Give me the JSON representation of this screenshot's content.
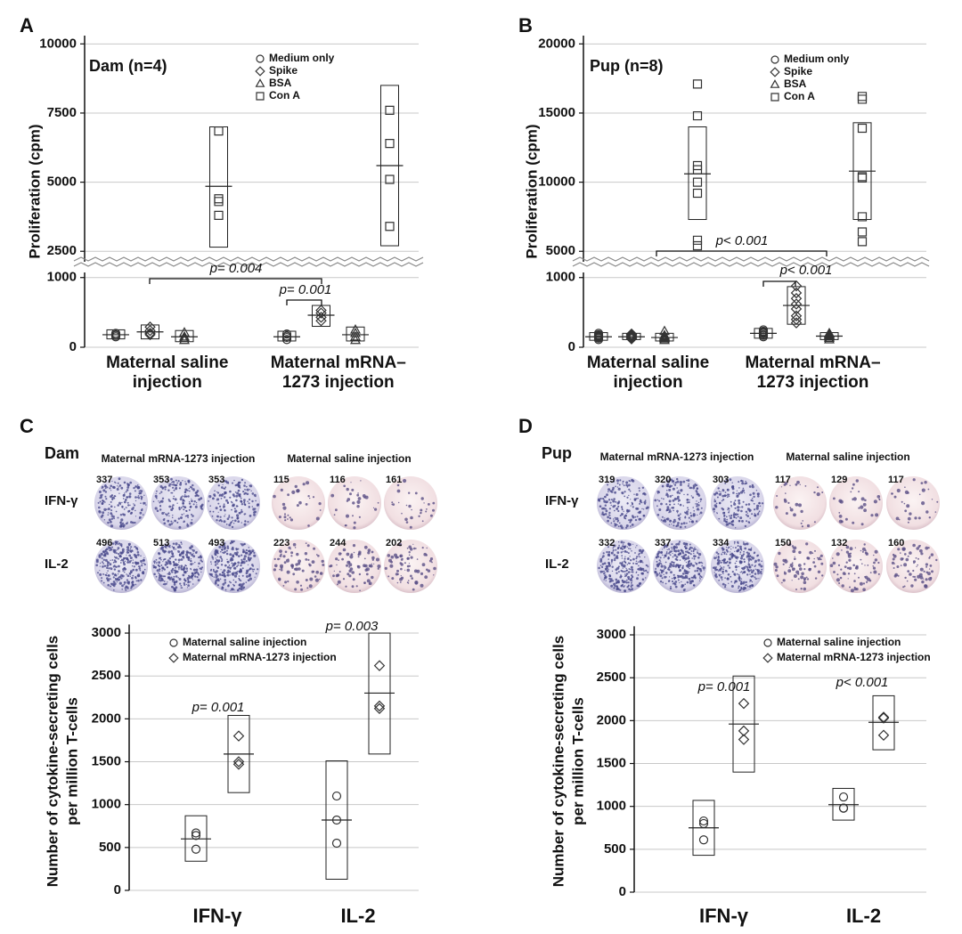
{
  "chart_data": [
    {
      "type": "dot",
      "panel": "A",
      "title": "Dam (n=4)",
      "ylabel": [
        "Proliferation (cpm)"
      ],
      "categories": [
        [
          "Maternal saline",
          "injection"
        ],
        [
          "Maternal mRNA–",
          "1273 injection"
        ]
      ],
      "series": [
        {
          "name": "Medium only",
          "marker": "circle",
          "values": [
            [
              150,
              170,
              180,
              200
            ],
            [
              110,
              140,
              160,
              190
            ]
          ],
          "means": [
            180,
            150
          ],
          "ranges": [
            [
              120,
              250
            ],
            [
              90,
              230
            ]
          ]
        },
        {
          "name": "Spike",
          "marker": "diamond",
          "values": [
            [
              180,
              200,
              240,
              290
            ],
            [
              380,
              430,
              490,
              530
            ]
          ],
          "means": [
            220,
            460
          ],
          "ranges": [
            [
              120,
              320
            ],
            [
              300,
              600
            ]
          ]
        },
        {
          "name": "BSA",
          "marker": "triangle",
          "values": [
            [
              100,
              130,
              150,
              210
            ],
            [
              100,
              150,
              200,
              250
            ]
          ],
          "means": [
            150,
            180
          ],
          "ranges": [
            [
              80,
              240
            ],
            [
              90,
              290
            ]
          ]
        },
        {
          "name": "Con A",
          "marker": "square",
          "values": [
            [
              6850,
              4400,
              4300,
              3800
            ],
            [
              7600,
              6400,
              5100,
              3400
            ]
          ],
          "means": [
            4850,
            5600
          ],
          "ranges": [
            [
              2650,
              7000
            ],
            [
              2700,
              8500
            ]
          ]
        }
      ],
      "ylim": [
        0,
        1150
      ],
      "yticks": [
        0,
        1000
      ],
      "y_break": {
        "ylim": [
          2250,
          10300
        ],
        "yticks": [
          2500,
          5000,
          7500,
          10000
        ]
      },
      "grid": true,
      "annotations": [
        "p= 0.004",
        "p= 0.001"
      ]
    },
    {
      "type": "dot",
      "panel": "B",
      "title": "Pup (n=8)",
      "ylabel": [
        "Proliferation (cpm)"
      ],
      "categories": [
        [
          "Maternal saline",
          "injection"
        ],
        [
          "Maternal mRNA–",
          "1273 injection"
        ]
      ],
      "series": [
        {
          "name": "Medium only",
          "marker": "circle",
          "values": [
            [
              110,
              130,
              140,
              150,
              160,
              170,
              180,
              200
            ],
            [
              150,
              170,
              180,
              200,
              210,
              220,
              230,
              250
            ]
          ],
          "means": [
            150,
            200
          ],
          "ranges": [
            [
              100,
              210
            ],
            [
              130,
              270
            ]
          ]
        },
        {
          "name": "Spike",
          "marker": "diamond",
          "values": [
            [
              120,
              130,
              140,
              150,
              160,
              170,
              180,
              190
            ],
            [
              350,
              400,
              450,
              550,
              620,
              700,
              780,
              880
            ]
          ],
          "means": [
            150,
            600
          ],
          "ranges": [
            [
              110,
              200
            ],
            [
              330,
              870
            ]
          ]
        },
        {
          "name": "BSA",
          "marker": "triangle",
          "values": [
            [
              100,
              120,
              130,
              140,
              150,
              160,
              170,
              230
            ],
            [
              110,
              130,
              150,
              160,
              170,
              180,
              190,
              200
            ]
          ],
          "means": [
            140,
            160
          ],
          "ranges": [
            [
              90,
              200
            ],
            [
              110,
              210
            ]
          ]
        },
        {
          "name": "Con A",
          "marker": "square",
          "values": [
            [
              17100,
              14800,
              11200,
              10900,
              10000,
              9200,
              5800,
              5400
            ],
            [
              16200,
              16000,
              13900,
              10400,
              10300,
              7500,
              6400,
              5700
            ]
          ],
          "means": [
            10600,
            10800
          ],
          "ranges": [
            [
              7300,
              14000
            ],
            [
              7300,
              14300
            ]
          ]
        }
      ],
      "ylim": [
        0,
        1150
      ],
      "yticks": [
        0,
        1000
      ],
      "y_break": {
        "ylim": [
          4500,
          20600
        ],
        "yticks": [
          5000,
          10000,
          15000,
          20000
        ]
      },
      "grid": true,
      "annotations": [
        "p< 0.001",
        "p< 0.001"
      ]
    },
    {
      "type": "dot",
      "ylabel": [
        "Number of cytokine-secreting cells",
        "per million T-cells"
      ],
      "categories": [
        [
          "IFN-γ"
        ],
        [
          "IL-2"
        ]
      ],
      "series": [
        {
          "name": "Maternal saline injection",
          "marker": "circle",
          "values": [
            [
              670,
              640,
              480
            ],
            [
              1100,
              820,
              550
            ]
          ],
          "means": [
            600,
            820
          ],
          "ranges": [
            [
              340,
              870
            ],
            [
              130,
              1510
            ]
          ]
        },
        {
          "name": "Maternal mRNA-1273 injection",
          "marker": "diamond",
          "values": [
            [
              1800,
              1500,
              1470
            ],
            [
              2620,
              2150,
              2120
            ]
          ],
          "means": [
            1590,
            2300
          ],
          "ranges": [
            [
              1140,
              2040
            ],
            [
              1590,
              3000
            ]
          ]
        }
      ],
      "ylim": [
        0,
        3100
      ],
      "yticks": [
        0,
        500,
        1000,
        1500,
        2000,
        2500,
        3000
      ],
      "grid": true,
      "annotations": [
        "p= 0.001",
        "p= 0.003"
      ]
    },
    {
      "type": "dot",
      "ylabel": [
        "Number of cytokine-secreting cells",
        "per million T-cells"
      ],
      "categories": [
        [
          "IFN-γ"
        ],
        [
          "IL-2"
        ]
      ],
      "series": [
        {
          "name": "Maternal saline injection",
          "marker": "circle",
          "values": [
            [
              830,
              800,
              610
            ],
            [
              1110,
              980,
              980
            ]
          ],
          "means": [
            750,
            1020
          ],
          "ranges": [
            [
              430,
              1070
            ],
            [
              840,
              1210
            ]
          ]
        },
        {
          "name": "Maternal mRNA-1273 injection",
          "marker": "diamond",
          "values": [
            [
              2200,
              1880,
              1780
            ],
            [
              2040,
              2030,
              1830
            ]
          ],
          "means": [
            1960,
            1980
          ],
          "ranges": [
            [
              1400,
              2520
            ],
            [
              1660,
              2290
            ]
          ]
        }
      ],
      "ylim": [
        0,
        3100
      ],
      "yticks": [
        0,
        500,
        1000,
        1500,
        2000,
        2500,
        3000
      ],
      "grid": true,
      "annotations": [
        "p= 0.001",
        "p< 0.001"
      ]
    }
  ],
  "wells": [
    {
      "panel": "C",
      "title": "Dam",
      "row_labels": [
        "IFN-γ",
        "IL-2"
      ],
      "groups": [
        {
          "title": "Maternal mRNA-1273 injection",
          "rows": [
            [
              337,
              353,
              353
            ],
            [
              496,
              513,
              493
            ]
          ]
        },
        {
          "title": "Maternal saline injection",
          "rows": [
            [
              115,
              116,
              161
            ],
            [
              223,
              244,
              202
            ]
          ]
        }
      ]
    },
    {
      "panel": "D",
      "title": "Pup",
      "row_labels": [
        "IFN-γ",
        "IL-2"
      ],
      "groups": [
        {
          "title": "Maternal mRNA-1273 injection",
          "rows": [
            [
              319,
              320,
              303
            ],
            [
              332,
              337,
              334
            ]
          ]
        },
        {
          "title": "Maternal saline injection",
          "rows": [
            [
              117,
              129,
              117
            ],
            [
              150,
              132,
              160
            ]
          ]
        }
      ]
    }
  ]
}
